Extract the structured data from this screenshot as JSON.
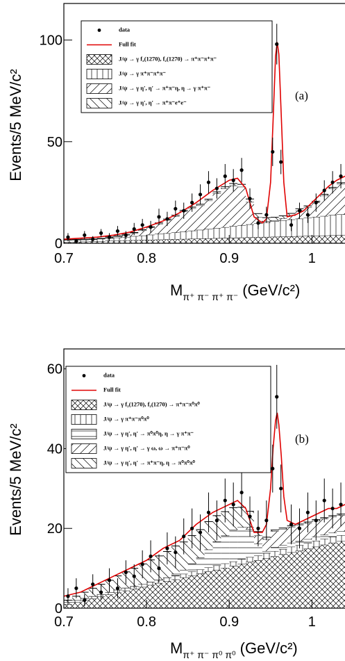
{
  "chart_data": [
    {
      "type": "stacked_histogram",
      "panel_label": "(a)",
      "ylabel": "Events/5 MeV/c²",
      "xlabel": "M",
      "xlabel_subscript": "π⁺ π⁻ π⁺ π⁻",
      "xlabel_unit": "(GeV/c²)",
      "xlim": [
        0.7,
        1.04
      ],
      "xticks": [
        0.7,
        0.8,
        0.9,
        1
      ],
      "ylim": [
        0,
        118
      ],
      "yticks": [
        0,
        50,
        100
      ],
      "bins": [
        0.7,
        0.71,
        0.72,
        0.73,
        0.74,
        0.75,
        0.76,
        0.77,
        0.78,
        0.79,
        0.8,
        0.81,
        0.82,
        0.83,
        0.84,
        0.85,
        0.86,
        0.87,
        0.88,
        0.89,
        0.9,
        0.91,
        0.92,
        0.93,
        0.94,
        0.95,
        0.96,
        0.97,
        0.98,
        0.99,
        1.0,
        1.01,
        1.02,
        1.03,
        1.04
      ],
      "data": {
        "name": "data",
        "color": "#000000",
        "x": [
          0.705,
          0.715,
          0.725,
          0.735,
          0.745,
          0.755,
          0.765,
          0.775,
          0.785,
          0.795,
          0.805,
          0.815,
          0.825,
          0.835,
          0.845,
          0.855,
          0.865,
          0.875,
          0.885,
          0.895,
          0.905,
          0.915,
          0.925,
          0.935,
          0.945,
          0.9525,
          0.9575,
          0.9625,
          0.975,
          0.985,
          0.995,
          1.005,
          1.015,
          1.025,
          1.035
        ],
        "values": [
          3,
          1,
          4,
          2,
          5,
          3,
          6,
          4,
          7,
          9,
          8,
          13,
          12,
          17,
          16,
          20,
          24,
          30,
          27,
          33,
          31,
          36,
          22,
          10,
          14,
          45,
          98,
          40,
          9,
          16,
          14,
          20,
          26,
          30,
          33
        ],
        "errors": [
          2,
          1,
          2,
          1.5,
          2,
          2,
          2.5,
          2,
          3,
          3,
          3,
          4,
          3.5,
          4,
          4,
          4.5,
          5,
          5.5,
          5,
          6,
          5.5,
          6,
          5,
          3,
          4,
          7,
          10,
          6,
          3,
          4,
          4,
          4.5,
          5,
          5.5,
          6
        ]
      },
      "fit": {
        "name": "Full fit",
        "color": "#e00000",
        "x": [
          0.7,
          0.72,
          0.74,
          0.76,
          0.78,
          0.8,
          0.82,
          0.84,
          0.86,
          0.88,
          0.9,
          0.91,
          0.92,
          0.93,
          0.94,
          0.945,
          0.95,
          0.953,
          0.956,
          0.958,
          0.96,
          0.963,
          0.966,
          0.97,
          0.98,
          0.99,
          1.0,
          1.01,
          1.02,
          1.03,
          1.04
        ],
        "values": [
          2,
          2.5,
          3,
          4,
          5.5,
          8,
          11,
          15,
          20,
          26,
          31,
          32,
          27,
          13,
          10,
          12,
          30,
          60,
          92,
          99,
          93,
          62,
          30,
          13,
          14,
          16,
          20,
          24,
          28,
          31,
          33
        ]
      },
      "components": [
        {
          "name": "J/ψ → γ f₂(1270), f₂(1270) → π⁺π⁻π⁺π⁻",
          "pattern": "crosshatch",
          "values": [
            0.6,
            0.7,
            0.8,
            0.9,
            1.0,
            1.2,
            1.3,
            1.4,
            1.5,
            1.6,
            1.7,
            1.8,
            1.9,
            2.0,
            2.1,
            2.2,
            2.3,
            2.4,
            2.5,
            2.6,
            2.7,
            2.8,
            2.9,
            3.0,
            3.1,
            3.2,
            3.3,
            3.4,
            3.5,
            3.6,
            3.7,
            3.8,
            3.9,
            4.0
          ]
        },
        {
          "name": "J/ψ → γ π⁺π⁻π⁺π⁻",
          "pattern": "vertical",
          "values": [
            1,
            1,
            1,
            1,
            1.2,
            1.3,
            1.5,
            1.7,
            2,
            2.2,
            2.5,
            2.8,
            3,
            3.3,
            3.6,
            4,
            4.3,
            4.6,
            5,
            5.3,
            5.7,
            6,
            6.4,
            6.8,
            7.2,
            7.6,
            8,
            8.3,
            8.6,
            9,
            9.3,
            9.6,
            10,
            10.2
          ]
        },
        {
          "name": "J/ψ → γ η′, η′ → π⁺π⁻η, η → γ π⁺π⁻",
          "pattern": "diagonal",
          "values": [
            0,
            0,
            0,
            0,
            0,
            0.3,
            0.6,
            1,
            1.5,
            2.5,
            3.5,
            5,
            6.5,
            8,
            10,
            11,
            12,
            14,
            17,
            19,
            20,
            19,
            11,
            3,
            0.5,
            0.5,
            1,
            2,
            4,
            5,
            7,
            10,
            13,
            15
          ]
        },
        {
          "name": "J/ψ → γ η′, η′ → π⁺π⁻e⁺e⁻",
          "pattern": "antidiagonal",
          "values": [
            0.2,
            0.2,
            0.2,
            0.2,
            0.2,
            0.3,
            0.3,
            0.3,
            0.3,
            0.4,
            0.4,
            0.4,
            0.5,
            0.5,
            0.5,
            0.6,
            0.6,
            0.7,
            0.8,
            0.9,
            1,
            1.2,
            1.5,
            1.8,
            1.8,
            1.5,
            1.2,
            1,
            0.9,
            0.8,
            0.7,
            0.7,
            0.6,
            0.6
          ]
        }
      ]
    },
    {
      "type": "stacked_histogram",
      "panel_label": "(b)",
      "ylabel": "Events/5 MeV/c²",
      "xlabel": "M",
      "xlabel_subscript": "π⁺ π⁻ π⁰ π⁰",
      "xlabel_unit": "(GeV/c²)",
      "xlim": [
        0.7,
        1.04
      ],
      "xticks": [
        0.7,
        0.8,
        0.9,
        1
      ],
      "ylim": [
        0,
        65
      ],
      "yticks": [
        0,
        20,
        40,
        60
      ],
      "bins": [
        0.7,
        0.71,
        0.72,
        0.73,
        0.74,
        0.75,
        0.76,
        0.77,
        0.78,
        0.79,
        0.8,
        0.81,
        0.82,
        0.83,
        0.84,
        0.85,
        0.86,
        0.87,
        0.88,
        0.89,
        0.9,
        0.91,
        0.92,
        0.93,
        0.94,
        0.95,
        0.96,
        0.97,
        0.98,
        0.99,
        1.0,
        1.01,
        1.02,
        1.03,
        1.04
      ],
      "data": {
        "name": "data",
        "color": "#000000",
        "x": [
          0.705,
          0.715,
          0.725,
          0.735,
          0.745,
          0.755,
          0.765,
          0.775,
          0.785,
          0.795,
          0.805,
          0.815,
          0.825,
          0.835,
          0.845,
          0.855,
          0.865,
          0.875,
          0.885,
          0.895,
          0.905,
          0.915,
          0.925,
          0.935,
          0.945,
          0.9525,
          0.9575,
          0.9625,
          0.975,
          0.985,
          0.995,
          1.005,
          1.015,
          1.025,
          1.035
        ],
        "values": [
          3,
          5,
          2,
          6,
          4,
          7,
          5,
          9,
          8,
          11,
          13,
          10,
          15,
          14,
          18,
          20,
          19,
          24,
          22,
          27,
          26,
          29,
          23,
          20,
          22,
          35,
          53,
          30,
          21,
          20,
          24,
          22,
          27,
          25,
          26
        ],
        "errors": [
          2,
          2.5,
          1.5,
          2.5,
          2,
          3,
          2.5,
          3,
          3,
          3.5,
          4,
          3.5,
          4,
          4,
          4.5,
          5,
          4.5,
          5,
          5,
          5.5,
          5.5,
          6,
          5,
          4.5,
          5,
          6,
          8,
          6,
          5,
          5,
          5,
          5,
          5.5,
          5,
          5.5
        ]
      },
      "fit": {
        "name": "Full fit",
        "color": "#e00000",
        "x": [
          0.7,
          0.72,
          0.74,
          0.76,
          0.78,
          0.8,
          0.82,
          0.84,
          0.86,
          0.88,
          0.9,
          0.91,
          0.92,
          0.93,
          0.94,
          0.945,
          0.95,
          0.953,
          0.956,
          0.958,
          0.96,
          0.963,
          0.966,
          0.97,
          0.98,
          0.99,
          1.0,
          1.01,
          1.02,
          1.03,
          1.04
        ],
        "values": [
          3,
          4,
          6,
          8,
          10,
          12,
          15,
          17,
          21,
          24,
          26,
          27,
          25,
          19,
          19,
          21,
          30,
          40,
          47,
          49,
          46,
          38,
          28,
          22,
          21,
          22,
          23,
          24,
          25,
          25,
          26
        ]
      },
      "components": [
        {
          "name": "J/ψ → γ f₂(1270), f₂(1270) → π⁺π⁻π⁰π⁰",
          "pattern": "crosshatch",
          "values": [
            1,
            1.5,
            2,
            2.4,
            2.9,
            3.4,
            3.9,
            4.4,
            4.8,
            5.3,
            5.8,
            6.3,
            6.8,
            7.2,
            7.7,
            8.2,
            8.7,
            9.2,
            9.6,
            10.1,
            10.6,
            11.1,
            11.6,
            12,
            12.5,
            13,
            13.5,
            14,
            14.4,
            14.9,
            15.4,
            15.9,
            16.4,
            16.8
          ]
        },
        {
          "name": "J/ψ → γ π⁺π⁻π⁰π⁰",
          "pattern": "vertical",
          "values": [
            0.5,
            0.5,
            0.5,
            0.6,
            0.6,
            0.6,
            0.7,
            0.7,
            0.7,
            0.8,
            0.8,
            0.8,
            0.9,
            0.9,
            0.9,
            1,
            1,
            1,
            1.1,
            1.1,
            1.1,
            1.2,
            1.2,
            1.2,
            1.3,
            1.3,
            1.3,
            1.4,
            1.4,
            1.4,
            1.5,
            1.5,
            1.5,
            1.5
          ]
        },
        {
          "name": "J/ψ → γ η′, η′ → π⁰π⁰η, η → γ π⁺π⁻",
          "pattern": "horizontal",
          "values": [
            0,
            0,
            0,
            0,
            0,
            0,
            0,
            0,
            0,
            0,
            0,
            0,
            0,
            0.5,
            1,
            2,
            3,
            4.5,
            6,
            7,
            8,
            8,
            7,
            3,
            0.5,
            1,
            1,
            1,
            1,
            1,
            1,
            1,
            1,
            1
          ]
        },
        {
          "name": "J/ψ → γ η′, η′ → γ ω, ω → π⁺π⁻π⁰",
          "pattern": "diagonal",
          "values": [
            0,
            0,
            0,
            0,
            0,
            0,
            0,
            0,
            0,
            0,
            0,
            0,
            0,
            0,
            0,
            0,
            0,
            0,
            0,
            0,
            0,
            0,
            0.5,
            2,
            3,
            4,
            4,
            4,
            4,
            4,
            4,
            4,
            4,
            4
          ]
        },
        {
          "name": "J/ψ → γ η′, η′ → π⁺π⁻η, η → π⁰π⁰π⁰",
          "pattern": "antidiagonal",
          "values": [
            0.5,
            1,
            1.5,
            2,
            2.5,
            3,
            3.5,
            4,
            4.5,
            5,
            5.5,
            6,
            6.5,
            7,
            7,
            7,
            7,
            7,
            6.5,
            6,
            5.5,
            5,
            4,
            1,
            0.5,
            0.3,
            0.3,
            0.3,
            0.3,
            0.3,
            0.3,
            0.3,
            0.3,
            0.3
          ]
        }
      ]
    }
  ]
}
